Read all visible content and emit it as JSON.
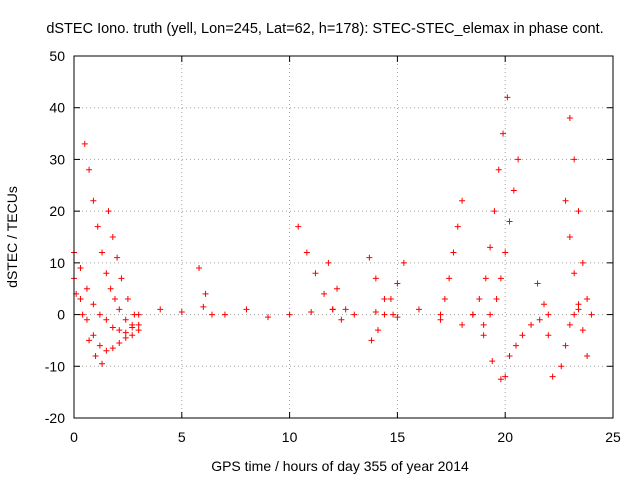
{
  "chart_data": {
    "type": "scatter",
    "title": "dSTEC Iono. truth (yell, Lon=245, Lat=62, h=178): STEC-STEC_elemax in phase cont.",
    "xlabel": "GPS time / hours of day 355 of year 2014",
    "ylabel": "dSTEC  / TECUs",
    "xlim": [
      0,
      25
    ],
    "ylim": [
      -20,
      50
    ],
    "xticks": [
      "0",
      "5",
      "10",
      "15",
      "20",
      "25"
    ],
    "yticks": [
      "-20",
      "-10",
      "0",
      "10",
      "20",
      "30",
      "40",
      "50"
    ],
    "grid": true,
    "marker": "+",
    "color": "#ff0000",
    "series": [
      {
        "x": [
          0.0,
          0.3,
          0.6,
          0.9,
          1.2,
          1.5,
          1.8,
          2.1,
          2.4,
          2.7,
          3.0
        ],
        "values": [
          12.0,
          9.0,
          5.0,
          2.0,
          0.0,
          -1.0,
          -2.5,
          -3.0,
          -3.5,
          -2.5,
          -2.0
        ]
      },
      {
        "x": [
          0.0,
          0.3,
          0.6,
          0.9,
          1.2,
          1.5,
          1.8,
          2.1,
          2.4,
          2.7
        ],
        "values": [
          7.0,
          3.0,
          -1.0,
          -4.0,
          -6.0,
          -7.0,
          -6.5,
          -5.5,
          -4.5,
          -4.0
        ]
      },
      {
        "x": [
          0.1,
          0.4,
          0.7,
          1.0,
          1.3
        ],
        "values": [
          4.0,
          0.0,
          -5.0,
          -8.0,
          -9.5
        ]
      },
      {
        "x": [
          0.5,
          0.7,
          0.9,
          1.1,
          1.3,
          1.5,
          1.7,
          1.9,
          2.1,
          2.4,
          2.7,
          3.0
        ],
        "values": [
          33.0,
          28.0,
          22.0,
          17.0,
          12.0,
          8.0,
          5.0,
          3.0,
          1.0,
          -1.0,
          -2.0,
          -3.0
        ]
      },
      {
        "x": [
          1.6,
          1.8,
          2.0,
          2.2,
          2.5,
          2.8
        ],
        "values": [
          20.0,
          15.0,
          11.0,
          7.0,
          3.0,
          0.0
        ]
      },
      {
        "x": [
          3.0,
          4.0,
          5.0,
          6.0,
          7.0,
          8.0,
          9.0,
          10.0,
          11.0,
          12.0,
          13.0,
          14.0,
          15.0,
          16.0,
          17.0,
          18.0
        ],
        "values": [
          0.0,
          1.0,
          0.5,
          1.5,
          0.0,
          1.0,
          -0.5,
          0.0,
          0.5,
          1.0,
          0.0,
          0.5,
          -0.5,
          1.0,
          -1.0,
          -2.0
        ]
      },
      {
        "x": [
          5.8,
          6.1,
          6.4
        ],
        "values": [
          9.0,
          4.0,
          0.0
        ]
      },
      {
        "x": [
          10.4,
          10.8,
          11.2,
          11.6,
          12.0,
          12.4
        ],
        "values": [
          17.0,
          12.0,
          8.0,
          4.0,
          1.0,
          -1.0
        ]
      },
      {
        "x": [
          11.8,
          12.2,
          12.6
        ],
        "values": [
          10.0,
          5.0,
          1.0
        ]
      },
      {
        "x": [
          13.7,
          14.0,
          14.4,
          14.8
        ],
        "values": [
          11.0,
          7.0,
          3.0,
          0.0
        ]
      },
      {
        "x": [
          15.3,
          15.0,
          14.7,
          14.4,
          14.1,
          13.8
        ],
        "values": [
          10.0,
          6.0,
          3.0,
          0.0,
          -3.0,
          -5.0
        ]
      },
      {
        "x": [
          18.0,
          17.8,
          17.6,
          17.4,
          17.2,
          17.0
        ],
        "values": [
          22.0,
          17.0,
          12.0,
          7.0,
          3.0,
          0.0
        ]
      },
      {
        "x": [
          18.5,
          19.0,
          19.4,
          19.8,
          20.0
        ],
        "values": [
          0.0,
          -4.0,
          -9.0,
          -12.5,
          -12.0
        ]
      },
      {
        "x": [
          20.1,
          19.9,
          19.7,
          19.5,
          19.3,
          19.1,
          18.8,
          18.5
        ],
        "values": [
          42.0,
          35.0,
          28.0,
          20.0,
          13.0,
          7.0,
          3.0,
          0.0
        ]
      },
      {
        "x": [
          20.6,
          20.4,
          20.2,
          20.0,
          19.8,
          19.6,
          19.3,
          19.0
        ],
        "values": [
          30.0,
          24.0,
          18.0,
          12.0,
          7.0,
          3.0,
          0.0,
          -2.0
        ]
      },
      {
        "x": [
          20.2,
          20.5,
          20.8,
          21.2,
          21.6,
          22.0
        ],
        "values": [
          -8.0,
          -6.0,
          -4.0,
          -2.0,
          -1.0,
          0.0
        ]
      },
      {
        "x": [
          21.5,
          21.8,
          22.0,
          22.2
        ],
        "values": [
          6.0,
          2.0,
          -4.0,
          -12.0
        ]
      },
      {
        "x": [
          22.8,
          23.0,
          23.2,
          23.4,
          23.6,
          23.8
        ],
        "values": [
          22.0,
          15.0,
          8.0,
          2.0,
          -3.0,
          -8.0
        ]
      },
      {
        "x": [
          23.0,
          23.2,
          23.4,
          23.6,
          23.8,
          24.0
        ],
        "values": [
          38.0,
          30.0,
          20.0,
          10.0,
          3.0,
          0.0
        ]
      },
      {
        "x": [
          22.6,
          22.8,
          23.0,
          23.2,
          23.4
        ],
        "values": [
          -10.0,
          -6.0,
          -2.0,
          0.0,
          1.0
        ]
      }
    ]
  }
}
